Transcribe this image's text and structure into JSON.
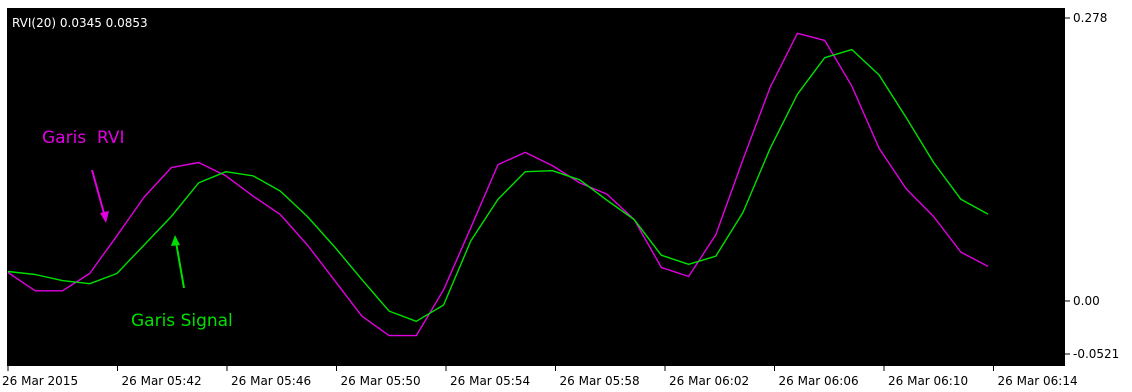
{
  "colors": {
    "plot_background": "#000000",
    "frame_background": "#ffffff",
    "rvi_line": "#e000e0",
    "signal_line": "#00e000",
    "text": "#000000",
    "label_text": "#ffffff"
  },
  "chart_data": {
    "type": "line",
    "indicator_label": "RVI(20) 0.0345 0.0853",
    "ylim": [
      -0.0521,
      0.278
    ],
    "y_tick_labels": [
      {
        "value": 0.278,
        "label": "0.278"
      },
      {
        "value": 0.0,
        "label": "0.00"
      },
      {
        "value": -0.0521,
        "label": "-0.0521"
      }
    ],
    "x_tick_labels": [
      "26 Mar 2015",
      "26 Mar 05:42",
      "26 Mar 05:46",
      "26 Mar 05:50",
      "26 Mar 05:54",
      "26 Mar 05:58",
      "26 Mar 06:02",
      "26 Mar 06:06",
      "26 Mar 06:10",
      "26 Mar 06:14"
    ],
    "grid": false,
    "series": [
      {
        "name": "Garis RVI",
        "values": [
          0.028,
          0.01,
          0.01,
          0.027,
          0.064,
          0.102,
          0.131,
          0.136,
          0.123,
          0.103,
          0.085,
          0.055,
          0.02,
          -0.015,
          -0.034,
          -0.034,
          0.011,
          0.072,
          0.134,
          0.146,
          0.133,
          0.116,
          0.105,
          0.08,
          0.033,
          0.024,
          0.065,
          0.139,
          0.21,
          0.263,
          0.256,
          0.211,
          0.15,
          0.11,
          0.083,
          0.048,
          0.034
        ],
        "color": "#e000e0"
      },
      {
        "name": "Garis Signal",
        "values": [
          0.029,
          0.026,
          0.02,
          0.017,
          0.027,
          0.055,
          0.083,
          0.116,
          0.127,
          0.123,
          0.108,
          0.083,
          0.053,
          0.021,
          -0.01,
          -0.02,
          -0.004,
          0.059,
          0.1,
          0.127,
          0.128,
          0.119,
          0.099,
          0.08,
          0.045,
          0.036,
          0.044,
          0.087,
          0.15,
          0.203,
          0.239,
          0.247,
          0.222,
          0.18,
          0.136,
          0.1,
          0.0853
        ],
        "color": "#00e000"
      }
    ],
    "annotations": [
      {
        "text": "Garis  RVI",
        "target_series": "Garis RVI",
        "color": "#e000e0"
      },
      {
        "text": "Garis Signal",
        "target_series": "Garis Signal",
        "color": "#00e000"
      }
    ]
  }
}
